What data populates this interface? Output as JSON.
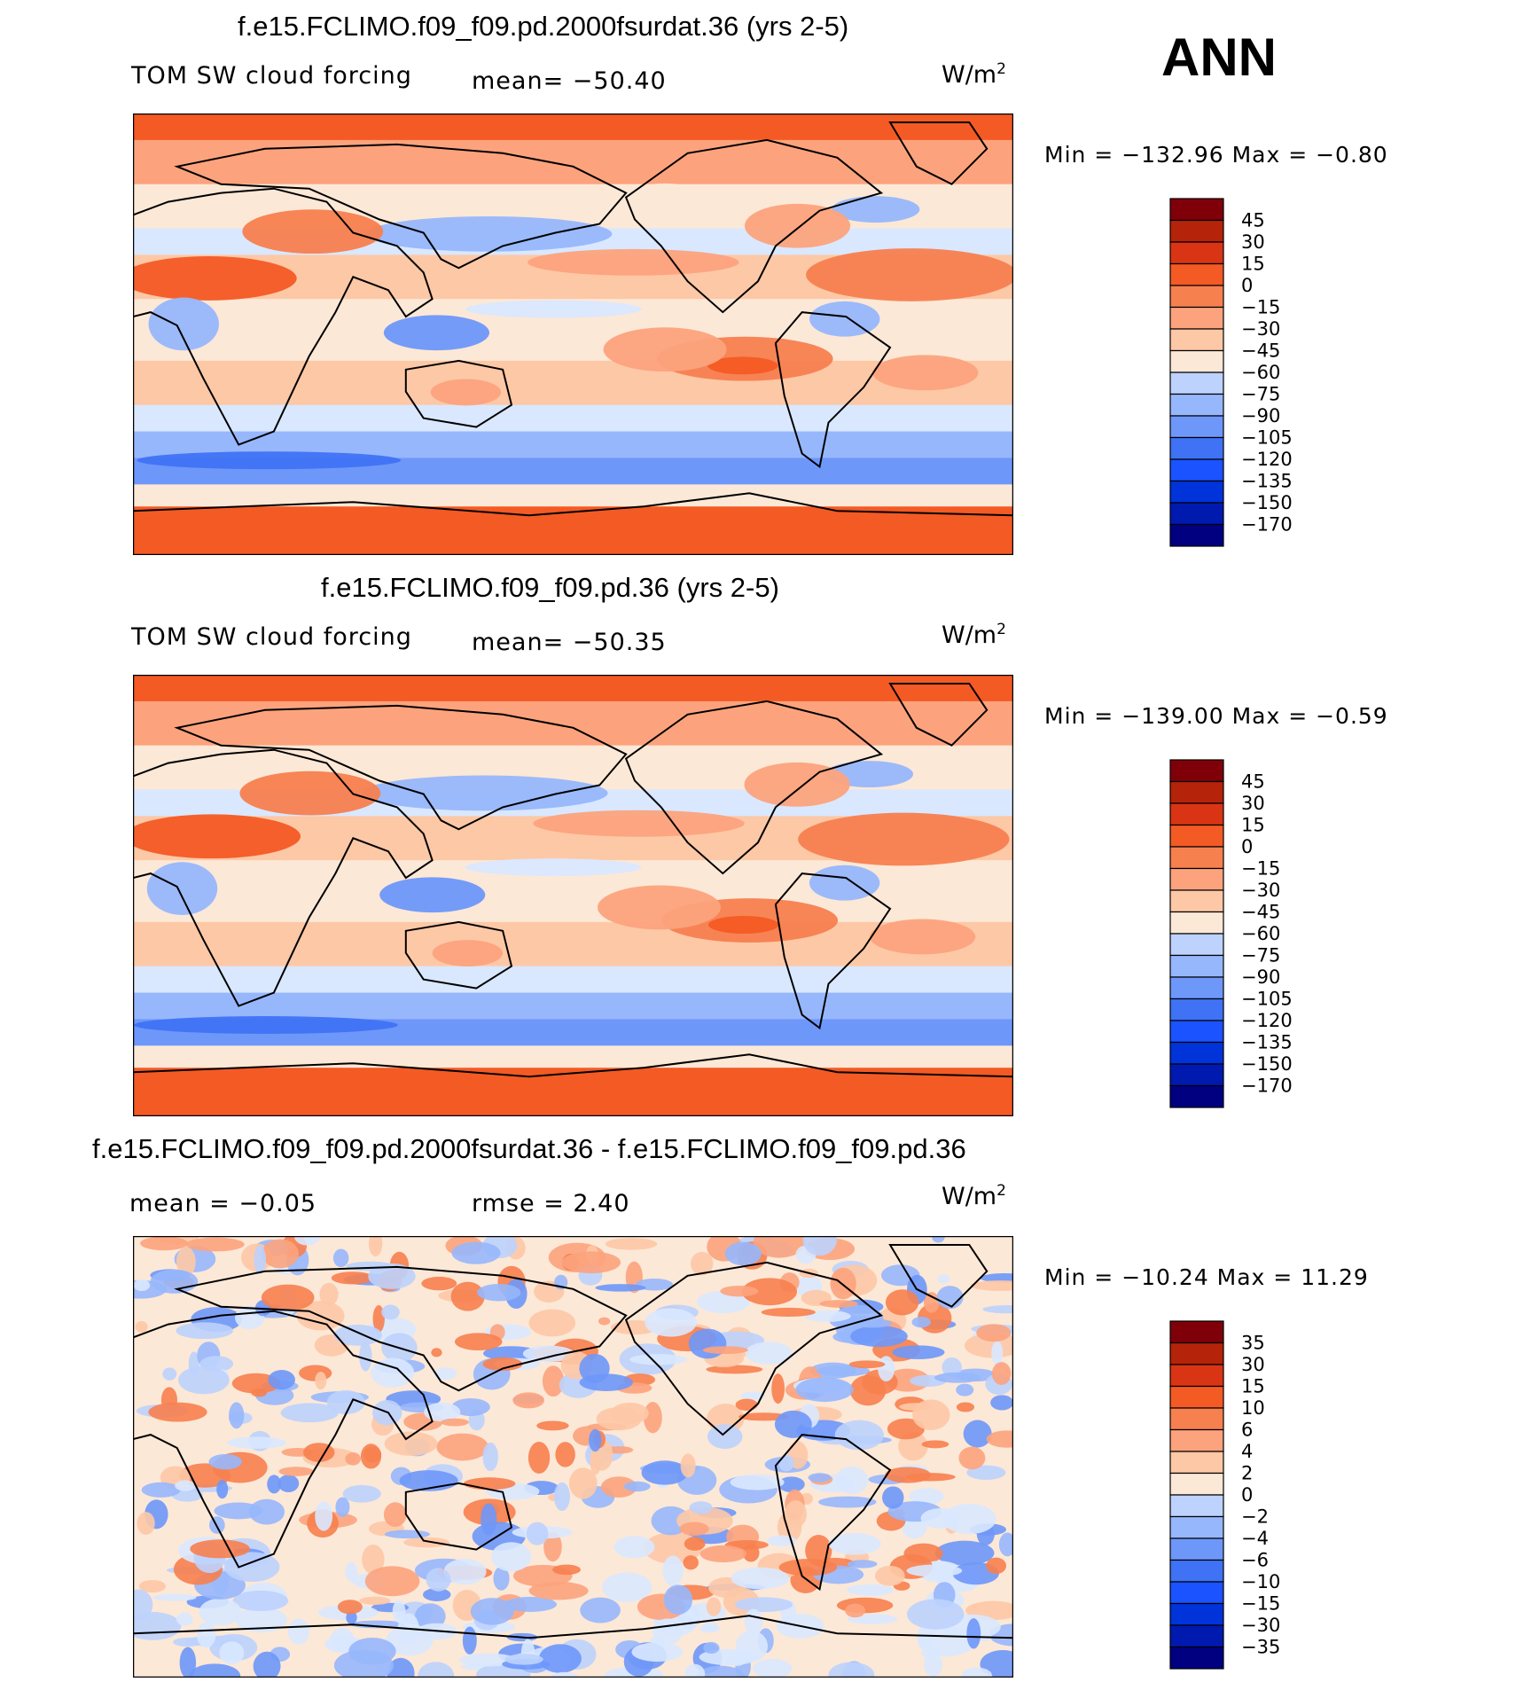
{
  "season": "ANN",
  "units": "W/m",
  "units_sup": "2",
  "colors": {
    "forcing_scale": [
      "#000080",
      "#001ab0",
      "#0033d9",
      "#1a53ff",
      "#3f72f5",
      "#6e97fa",
      "#97b7fc",
      "#bdd2fd",
      "#d9e8ff",
      "#fce8d7",
      "#fdc8a6",
      "#fca37d",
      "#f7804f",
      "#f45a24",
      "#d93515",
      "#b5230b",
      "#80000a"
    ],
    "diff_scale": [
      "#000080",
      "#001ab0",
      "#0033d9",
      "#1a53ff",
      "#3f72f5",
      "#6e97fa",
      "#97b7fc",
      "#bdd2fd",
      "#d9e8ff",
      "#fce8d7",
      "#fdc8a6",
      "#fca37d",
      "#f7804f",
      "#f45a24",
      "#d93515",
      "#b5230b",
      "#80000a"
    ]
  },
  "panels": [
    {
      "title": "f.e15.FCLIMO.f09_f09.pd.2000fsurdat.36 (yrs 2-5)",
      "left_label": "TOM SW cloud forcing",
      "center_label": "mean=  −50.40",
      "min_max": "Min  =  −132.96  Max  =    −0.80"
    },
    {
      "title": "f.e15.FCLIMO.f09_f09.pd.36 (yrs 2-5)",
      "left_label": "TOM SW cloud forcing",
      "center_label": "mean=  −50.35",
      "min_max": "Min  =  −139.00  Max  =    −0.59"
    },
    {
      "title": "f.e15.FCLIMO.f09_f09.pd.2000fsurdat.36 - f.e15.FCLIMO.f09_f09.pd.36",
      "left_label": "mean  =    −0.05",
      "center_label": "rmse  =     2.40",
      "min_max": "Min  =  −10.24  Max  =    11.29"
    }
  ],
  "chart_data": [
    {
      "type": "heatmap",
      "title": "f.e15.FCLIMO.f09_f09.pd.2000fsurdat.36 (yrs 2-5)",
      "variable": "TOM SW cloud forcing",
      "units": "W/m2",
      "mean": -50.4,
      "min": -132.96,
      "max": -0.8,
      "contour_levels": [
        "45",
        "30",
        "15",
        "0",
        "−15",
        "−30",
        "−45",
        "−60",
        "−75",
        "−90",
        "−105",
        "−120",
        "−135",
        "−150",
        "−170"
      ]
    },
    {
      "type": "heatmap",
      "title": "f.e15.FCLIMO.f09_f09.pd.36 (yrs 2-5)",
      "variable": "TOM SW cloud forcing",
      "units": "W/m2",
      "mean": -50.35,
      "min": -139.0,
      "max": -0.59,
      "contour_levels": [
        "45",
        "30",
        "15",
        "0",
        "−15",
        "−30",
        "−45",
        "−60",
        "−75",
        "−90",
        "−105",
        "−120",
        "−135",
        "−150",
        "−170"
      ]
    },
    {
      "type": "heatmap",
      "title": "f.e15.FCLIMO.f09_f09.pd.2000fsurdat.36 - f.e15.FCLIMO.f09_f09.pd.36",
      "units": "W/m2",
      "mean": -0.05,
      "rmse": 2.4,
      "min": -10.24,
      "max": 11.29,
      "contour_levels": [
        "35",
        "30",
        "15",
        "10",
        "6",
        "4",
        "2",
        "0",
        "−2",
        "−4",
        "−6",
        "−10",
        "−15",
        "−30",
        "−35"
      ]
    }
  ]
}
